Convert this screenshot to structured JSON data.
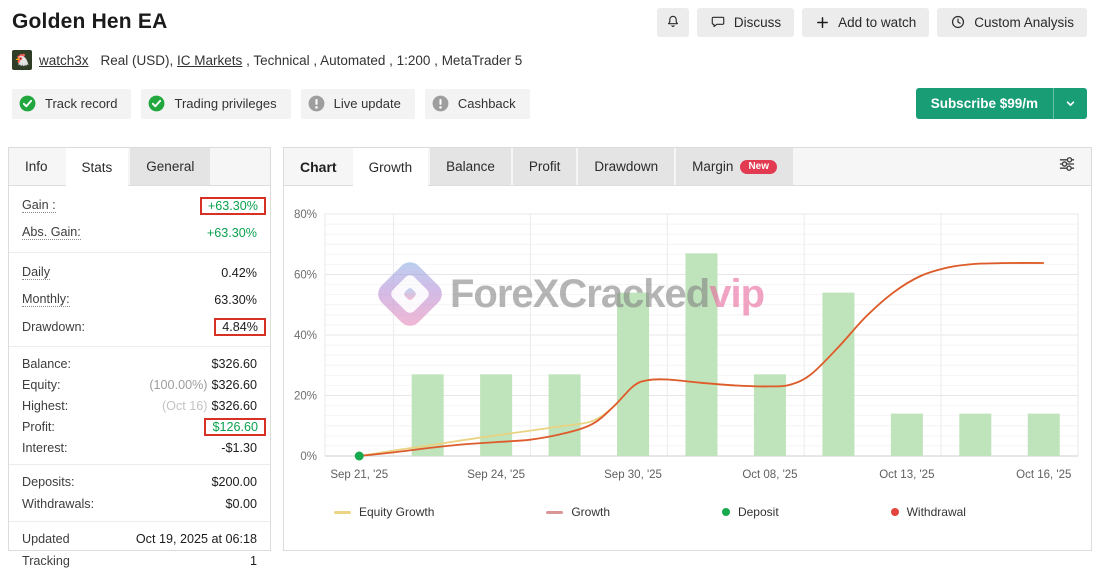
{
  "page": {
    "title": "Golden Hen EA"
  },
  "header": {
    "actions": {
      "discuss_label": "Discuss",
      "add_to_watch_label": "Add to watch",
      "custom_analysis_label": "Custom Analysis"
    },
    "account": {
      "username": "watch3x",
      "desc_pre": "Real (USD), ",
      "broker_link": "IC Markets",
      "desc_post": " , Technical , Automated , 1:200 , MetaTrader 5"
    },
    "badges": [
      {
        "label": "Track record",
        "status": "ok"
      },
      {
        "label": "Trading privileges",
        "status": "ok"
      },
      {
        "label": "Live update",
        "status": "info"
      },
      {
        "label": "Cashback",
        "status": "info"
      }
    ],
    "subscribe": {
      "label": "Subscribe $99/m"
    }
  },
  "info_panel": {
    "tabs": [
      {
        "label": "Info",
        "state": "plain"
      },
      {
        "label": "Stats",
        "state": "active"
      },
      {
        "label": "General",
        "state": "inactive"
      }
    ],
    "groups": [
      [
        {
          "label": "Gain :",
          "dotted": true,
          "value": "+63.30%",
          "green": true,
          "boxed": true
        },
        {
          "label": "Abs. Gain:",
          "dotted": true,
          "value": "+63.30%",
          "green": true
        }
      ],
      [
        {
          "label": "Daily",
          "dotted": true,
          "value": "0.42%"
        },
        {
          "label": "Monthly:",
          "dotted": true,
          "value": "63.30%"
        },
        {
          "label": "Drawdown:",
          "value": "4.84%",
          "boxed": true
        }
      ],
      [
        {
          "label": "Balance:",
          "value": "$326.60"
        },
        {
          "label": "Equity:",
          "prefix": "(100.00%)",
          "value": "$326.60"
        },
        {
          "label": "Highest:",
          "prefix": "(Oct 16)",
          "prefix_light": true,
          "value": "$326.60"
        },
        {
          "label": "Profit:",
          "value": "$126.60",
          "green": true,
          "boxed": true
        },
        {
          "label": "Interest:",
          "value": "-$1.30"
        }
      ],
      [
        {
          "label": "Deposits:",
          "value": "$200.00"
        },
        {
          "label": "Withdrawals:",
          "value": "$0.00"
        }
      ],
      [
        {
          "label": "Updated",
          "value": "Oct 19, 2025 at 06:18"
        },
        {
          "label": "Tracking",
          "value": "1"
        }
      ]
    ]
  },
  "chart_panel": {
    "header_label": "Chart",
    "tabs": [
      {
        "label": "Growth",
        "state": "active"
      },
      {
        "label": "Balance",
        "state": "inactive"
      },
      {
        "label": "Profit",
        "state": "inactive"
      },
      {
        "label": "Drawdown",
        "state": "inactive"
      },
      {
        "label": "Margin",
        "state": "inactive",
        "badge": "New"
      }
    ]
  },
  "chart_data": {
    "type": "combo-bar-line",
    "title": "Growth",
    "y_axis": {
      "min": 0,
      "max": 80,
      "unit": "%",
      "major_ticks": [
        0,
        20,
        40,
        60,
        80
      ]
    },
    "y_tick_labels": [
      "0%",
      "20%",
      "40%",
      "60%",
      "80%"
    ],
    "x_slots": 11,
    "x_labels": [
      {
        "slot": 0,
        "text": "Sep 21, '25"
      },
      {
        "slot": 2,
        "text": "Sep 24, '25"
      },
      {
        "slot": 4,
        "text": "Sep 30, '25"
      },
      {
        "slot": 6,
        "text": "Oct 08, '25"
      },
      {
        "slot": 8,
        "text": "Oct 13, '25"
      },
      {
        "slot": 10,
        "text": "Oct 16, '25"
      }
    ],
    "bars": {
      "name": "Daily profit bars",
      "color": "#bfe3ba",
      "points": [
        {
          "slot": 1,
          "value": 27
        },
        {
          "slot": 2,
          "value": 27
        },
        {
          "slot": 3,
          "value": 27
        },
        {
          "slot": 4,
          "value": 54
        },
        {
          "slot": 5,
          "value": 67
        },
        {
          "slot": 6,
          "value": 27
        },
        {
          "slot": 7,
          "value": 54
        },
        {
          "slot": 8,
          "value": 14
        },
        {
          "slot": 9,
          "value": 14
        },
        {
          "slot": 10,
          "value": 14
        }
      ]
    },
    "series": [
      {
        "name": "Equity Growth",
        "color": "#e9d383",
        "points": [
          [
            0,
            0
          ],
          [
            0.5,
            1.8
          ],
          [
            1,
            3.4
          ],
          [
            1.5,
            5.2
          ],
          [
            2,
            6.8
          ],
          [
            2.5,
            8.4
          ],
          [
            3,
            10
          ],
          [
            3.4,
            11.5
          ],
          [
            3.7,
            16
          ],
          [
            4,
            23
          ],
          [
            4.2,
            25
          ],
          [
            4.5,
            25.3
          ],
          [
            5,
            24.2
          ],
          [
            5.5,
            23.3
          ],
          [
            6,
            23
          ],
          [
            6.3,
            23.6
          ],
          [
            6.6,
            27
          ],
          [
            7,
            36
          ],
          [
            7.4,
            46
          ],
          [
            7.8,
            54
          ],
          [
            8.2,
            59.5
          ],
          [
            8.6,
            62.3
          ],
          [
            9,
            63.5
          ],
          [
            9.5,
            63.8
          ],
          [
            10,
            63.8
          ]
        ]
      },
      {
        "name": "Growth",
        "color": "#dd5b2d",
        "points": [
          [
            0,
            0
          ],
          [
            0.5,
            1.2
          ],
          [
            1,
            2.6
          ],
          [
            1.5,
            3.8
          ],
          [
            2,
            4.6
          ],
          [
            2.5,
            5.4
          ],
          [
            3,
            7.5
          ],
          [
            3.4,
            10.5
          ],
          [
            3.7,
            16
          ],
          [
            4,
            23
          ],
          [
            4.2,
            25
          ],
          [
            4.5,
            25.3
          ],
          [
            5,
            24.2
          ],
          [
            5.5,
            23.3
          ],
          [
            6,
            23
          ],
          [
            6.3,
            23.6
          ],
          [
            6.6,
            27
          ],
          [
            7,
            36
          ],
          [
            7.4,
            46
          ],
          [
            7.8,
            54
          ],
          [
            8.2,
            59.5
          ],
          [
            8.6,
            62.3
          ],
          [
            9,
            63.5
          ],
          [
            9.5,
            63.8
          ],
          [
            10,
            63.8
          ]
        ]
      }
    ],
    "markers": [
      {
        "type": "deposit",
        "slot": 0,
        "value": 0,
        "color": "#17a94d"
      }
    ],
    "legend": [
      {
        "label": "Equity Growth",
        "swatch": "line",
        "color": "#ecd584"
      },
      {
        "label": "Growth",
        "swatch": "line",
        "color": "#dc9595"
      },
      {
        "label": "Deposit",
        "swatch": "dot",
        "color": "#17a94d"
      },
      {
        "label": "Withdrawal",
        "swatch": "dot",
        "color": "#e2453d"
      }
    ],
    "watermark": {
      "main": "ForeXCracked",
      "accent": "vip"
    }
  }
}
